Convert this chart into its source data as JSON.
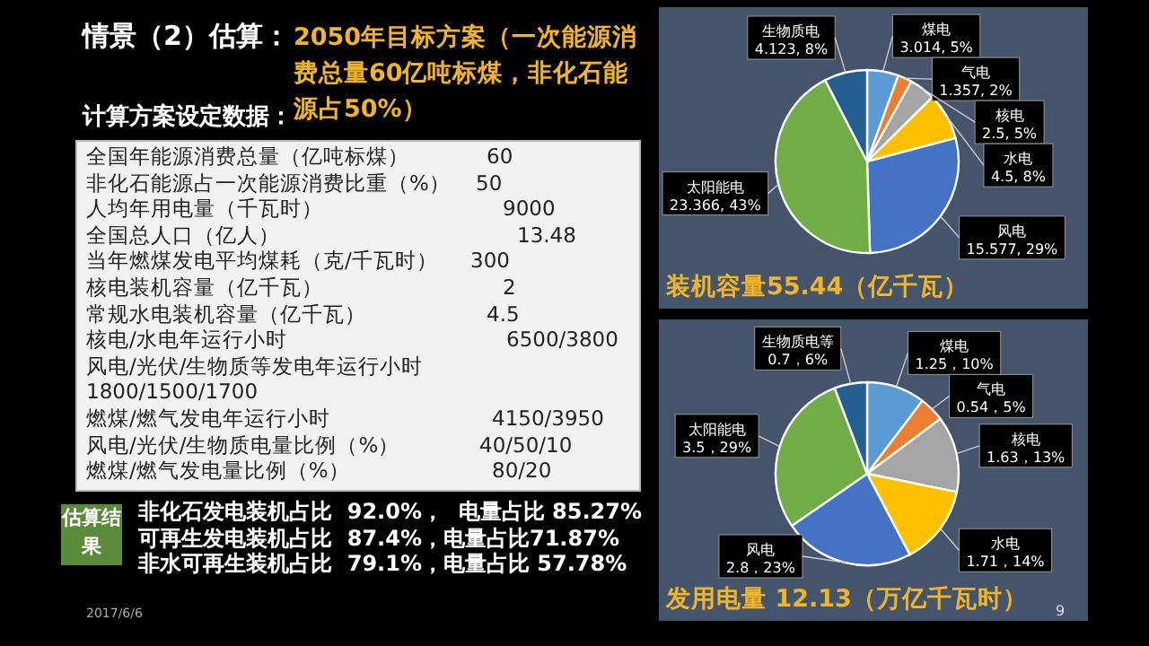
{
  "chart_data": [
    {
      "type": "other",
      "title": "情景（2）估算：",
      "subtitle": "2050年目标方案（一次能源消费总量60亿吨标煤，非化石能源占50%）",
      "annotations": [
        "计算方案设定数据：",
        "全国年能源消费总量（亿吨标煤）",
        "60",
        "非化石能源占一次能源消费比重（%）",
        "50",
        "人均年用电量（千瓦时）",
        "9000",
        "全国总人口（亿人）",
        "13.48",
        "当年燃煤发电平均煤耗（克/千瓦时）",
        "300",
        "核电装机容量（亿千瓦）",
        "2",
        "常规水电装机容量（亿千瓦）",
        "4.5",
        "核电/水电年运行小时",
        "6500/3800",
        "风电/光伏/生物质等发电年运行小时",
        "1800/1500/1700",
        "燃煤/燃气发电年运行小时",
        "4150/3950",
        "风电/光伏/生物质电量比例（%）",
        "40/50/10",
        "燃煤/燃气发电量比例（%）",
        "80/20",
        "估算结果",
        "非化石发电装机占比  92.0%，  电量占比 85.27%",
        "可再生发电装机占比  87.4%，电量占比71.87%",
        "非水可再生装机占比  79.1%，电量占比 57.78%",
        "2017/6/6",
        "9"
      ]
    },
    {
      "type": "pie",
      "title": "装机容量55.44（亿千瓦）",
      "categories": [
        "煤电",
        "气电",
        "核电",
        "水电",
        "风电",
        "太阳能电",
        "生物质电"
      ],
      "values": [
        3.014,
        1.357,
        2.5,
        4.5,
        15.577,
        23.366,
        4.123
      ],
      "value_labels": [
        "3.014, 5%",
        "1.357, 2%",
        "2.5, 5%",
        "4.5, 8%",
        "15.577, 29%",
        "23.366, 43%",
        "4.123, 8%"
      ],
      "colors": [
        "#5b9bd5",
        "#ed7d31",
        "#a5a5a5",
        "#ffc000",
        "#4472c4",
        "#70ad47",
        "#255e91"
      ]
    },
    {
      "type": "pie",
      "title": "发用电量 12.13（万亿千瓦时）",
      "categories": [
        "煤电",
        "气电",
        "核电",
        "水电",
        "风电",
        "太阳能电",
        "生物质电等"
      ],
      "values": [
        1.25,
        0.54,
        1.63,
        1.71,
        2.8,
        3.5,
        0.7
      ],
      "value_labels": [
        "1.25，10%",
        "0.54，5%",
        "1.63，13%",
        "1.71，14%",
        "2.8，23%",
        "3.5，29%",
        "0.7，6%"
      ],
      "colors": [
        "#5b9bd5",
        "#ed7d31",
        "#a5a5a5",
        "#ffc000",
        "#4472c4",
        "#70ad47",
        "#255e91"
      ]
    }
  ]
}
